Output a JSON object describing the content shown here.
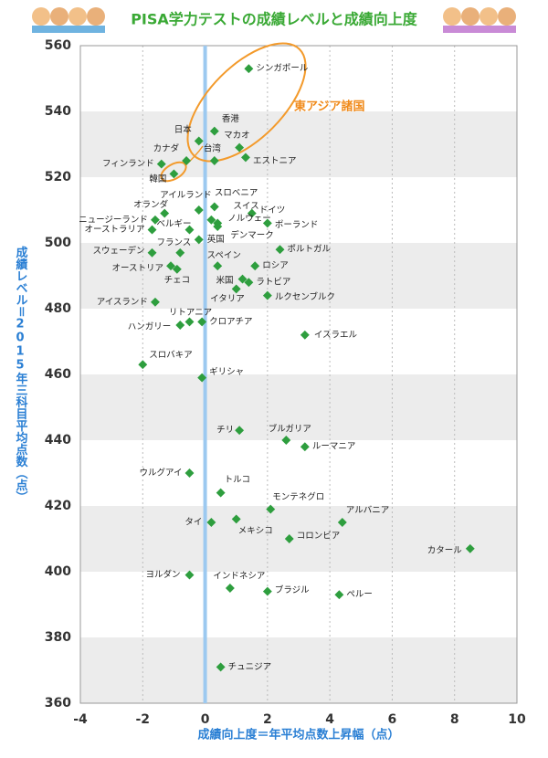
{
  "chart_data": {
    "type": "scatter",
    "title": "PISA学力テストの成績レベルと成績向上度",
    "x_label": "成績向上度＝年平均点数上昇幅（点）",
    "y_label": "成績レベル＝2015年三科目平均点数（点）",
    "annotation": "東アジア諸国",
    "color": "#2e9e3e",
    "xlim": [
      -4,
      10
    ],
    "xticks": [
      -4,
      -2,
      0,
      2,
      4,
      6,
      8,
      10
    ],
    "ylim": [
      360,
      560
    ],
    "yticks": [
      360,
      380,
      400,
      420,
      440,
      460,
      480,
      500,
      520,
      540,
      560
    ],
    "grid": true,
    "point_labels": [
      "シンガポール",
      "香港",
      "日本",
      "マカオ",
      "台湾",
      "エストニア",
      "カナダ",
      "フィンランド",
      "韓国",
      "アイルランド",
      "スロベニア",
      "オランダ",
      "スイス",
      "ドイツ",
      "ニュージーランド",
      "ノルウェー",
      "ポーランド",
      "ベルギー",
      "デンマーク",
      "オーストラリア",
      "英国",
      "フランス",
      "スウェーデン",
      "ポルトガル",
      "オーストリア",
      "チェコ",
      "スペイン",
      "ロシア",
      "米国",
      "ラトビア",
      "イタリア",
      "ルクセンブルク",
      "アイスランド",
      "リトアニア",
      "クロアチア",
      "ハンガリー",
      "イスラエル",
      "スロバキア",
      "ギリシャ",
      "チリ",
      "ブルガリア",
      "ルーマニア",
      "ウルグアイ",
      "トルコ",
      "モンテネグロ",
      "アルバニア",
      "タイ",
      "メキシコ",
      "コロンビア",
      "カタール",
      "ヨルダン",
      "インドネシア",
      "ブラジル",
      "ペルー",
      "チュニジア"
    ],
    "x": [
      1.4,
      0.3,
      -0.2,
      1.1,
      0.3,
      1.3,
      -0.6,
      -1.4,
      -1.0,
      -0.2,
      0.3,
      -1.3,
      0.2,
      1.5,
      -1.6,
      0.4,
      2.0,
      -0.5,
      0.4,
      -1.7,
      -0.2,
      -0.8,
      -1.7,
      2.4,
      -1.1,
      -0.9,
      0.4,
      1.6,
      1.2,
      1.4,
      1.0,
      2.0,
      -1.6,
      -0.5,
      -0.1,
      -0.8,
      3.2,
      -2.0,
      -0.1,
      1.1,
      2.6,
      3.2,
      -0.5,
      0.5,
      2.1,
      4.4,
      0.2,
      1.0,
      2.7,
      8.5,
      -0.5,
      0.8,
      2.0,
      4.3,
      0.5
    ],
    "values": [
      553,
      534,
      531,
      529,
      525,
      526,
      525,
      524,
      521,
      510,
      511,
      509,
      507,
      509,
      507,
      506,
      506,
      504,
      505,
      504,
      501,
      497,
      497,
      498,
      493,
      492,
      493,
      493,
      489,
      488,
      486,
      484,
      482,
      476,
      476,
      475,
      472,
      463,
      459,
      443,
      440,
      438,
      430,
      424,
      419,
      415,
      415,
      416,
      410,
      407,
      399,
      395,
      394,
      393,
      371
    ]
  }
}
